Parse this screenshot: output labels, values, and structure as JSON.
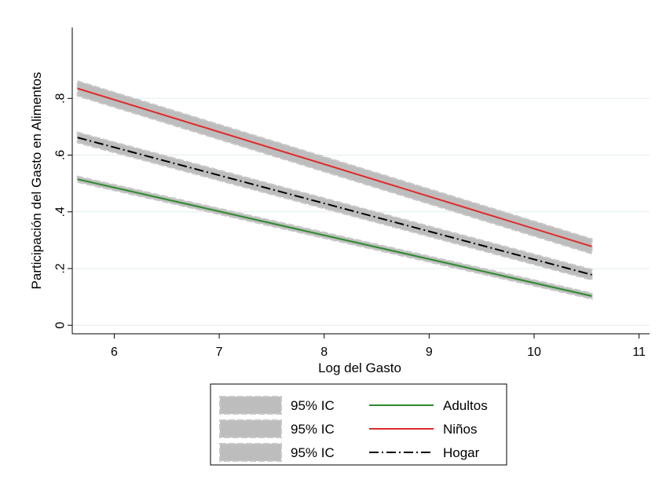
{
  "chart_data": {
    "type": "line",
    "title": "",
    "xlabel": "Log del Gasto",
    "ylabel": "Participación del Gasto en Alimentos",
    "xlim": [
      5.6,
      11.1
    ],
    "ylim": [
      -0.03,
      1.05
    ],
    "x_ticks": [
      "6",
      "7",
      "8",
      "9",
      "10",
      "11"
    ],
    "x_tick_values": [
      6,
      7,
      8,
      9,
      10,
      11
    ],
    "y_ticks": [
      "0",
      ".2",
      ".4",
      ".6",
      ".8"
    ],
    "y_tick_values": [
      0,
      0.2,
      0.4,
      0.6,
      0.8
    ],
    "grid": true,
    "legend_position": "bottom",
    "series": [
      {
        "name": "Adultos",
        "color": "#2e8b2e",
        "style": "solid",
        "x": [
          5.65,
          10.55
        ],
        "y": [
          0.515,
          0.103
        ],
        "ci_halfwidth": 0.01
      },
      {
        "name": "Niños",
        "color": "#e02a2a",
        "style": "solid",
        "x": [
          5.65,
          10.55
        ],
        "y": [
          0.835,
          0.278
        ],
        "ci_halfwidth": 0.026
      },
      {
        "name": "Hogar",
        "color": "#000000",
        "style": "dash-dot",
        "x": [
          5.65,
          10.55
        ],
        "y": [
          0.662,
          0.178
        ],
        "ci_halfwidth": 0.018
      }
    ],
    "ci_color": "#bdbdbd",
    "legend": {
      "rows": [
        {
          "ci_label": "95% IC",
          "line_label": "Adultos",
          "line_style": "solid",
          "line_color": "#2e8b2e"
        },
        {
          "ci_label": "95% IC",
          "line_label": "Niños",
          "line_style": "solid",
          "line_color": "#e02a2a"
        },
        {
          "ci_label": "95% IC",
          "line_label": "Hogar",
          "line_style": "dash-dot",
          "line_color": "#000000"
        }
      ]
    }
  }
}
